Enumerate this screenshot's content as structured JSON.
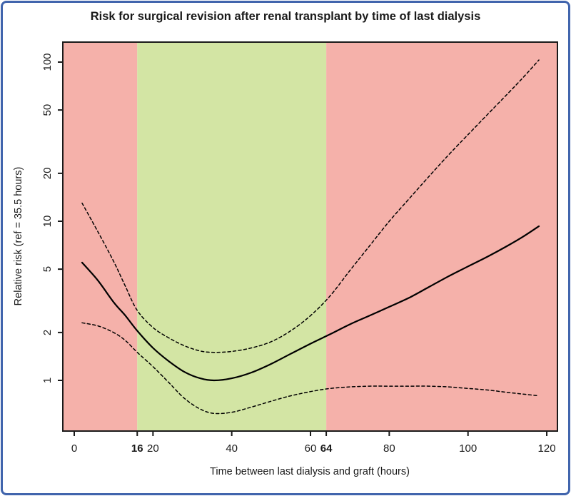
{
  "title": "Risk for surgical revision after renal transplant by time of last dialysis",
  "chart_data": {
    "type": "line",
    "title": "Risk for surgical revision after renal transplant by time of last dialysis",
    "xlabel": "Time between last dialysis and graft (hours)",
    "ylabel": "Relative risk (ref = 35.5 hours)",
    "x_scale": "linear",
    "y_scale": "log",
    "xlim": [
      0,
      120
    ],
    "ylim": [
      0.47,
      133
    ],
    "grid": false,
    "legend": "none",
    "reference_hours": 35.5,
    "x_ticks": [
      {
        "value": 0,
        "label": "0",
        "bold": false
      },
      {
        "value": 16,
        "label": "16",
        "bold": true
      },
      {
        "value": 20,
        "label": "20",
        "bold": false
      },
      {
        "value": 40,
        "label": "40",
        "bold": false
      },
      {
        "value": 60,
        "label": "60",
        "bold": false
      },
      {
        "value": 64,
        "label": "64",
        "bold": true
      },
      {
        "value": 80,
        "label": "80",
        "bold": false
      },
      {
        "value": 100,
        "label": "100",
        "bold": false
      },
      {
        "value": 120,
        "label": "120",
        "bold": false
      }
    ],
    "y_ticks": [
      {
        "value": 1,
        "label": "1"
      },
      {
        "value": 2,
        "label": "2"
      },
      {
        "value": 5,
        "label": "5"
      },
      {
        "value": 10,
        "label": "10"
      },
      {
        "value": 20,
        "label": "20"
      },
      {
        "value": 50,
        "label": "50"
      },
      {
        "value": 100,
        "label": "100"
      }
    ],
    "regions": [
      {
        "name": "high-risk-early",
        "start": null,
        "end": 16,
        "color": "#f5b1aa"
      },
      {
        "name": "low-risk-window",
        "start": 16,
        "end": 64,
        "color": "#d3e5a4"
      },
      {
        "name": "high-risk-late",
        "start": 64,
        "end": null,
        "color": "#f5b1aa"
      }
    ],
    "x": [
      2,
      6,
      10,
      13,
      16,
      20,
      24,
      28,
      32,
      35.5,
      40,
      45,
      50,
      55,
      60,
      65,
      70,
      75,
      80,
      85,
      90,
      95,
      100,
      105,
      110,
      114,
      118
    ],
    "series": [
      {
        "name": "relative-risk",
        "style": "solid",
        "values": [
          5.5,
          4.25,
          3.1,
          2.55,
          2.05,
          1.6,
          1.32,
          1.13,
          1.03,
          1.0,
          1.03,
          1.12,
          1.27,
          1.47,
          1.7,
          1.95,
          2.25,
          2.55,
          2.9,
          3.3,
          3.85,
          4.5,
          5.2,
          6.0,
          7.0,
          8.0,
          9.3
        ]
      },
      {
        "name": "upper-confidence-band",
        "style": "dashed",
        "values": [
          13.0,
          8.6,
          5.6,
          3.9,
          2.75,
          2.15,
          1.85,
          1.65,
          1.53,
          1.5,
          1.52,
          1.6,
          1.75,
          2.05,
          2.55,
          3.4,
          4.9,
          7.0,
          10.0,
          13.8,
          19.0,
          26.0,
          35.0,
          47.0,
          63.0,
          80.0,
          103.0
        ]
      },
      {
        "name": "lower-confidence-band",
        "style": "dashed",
        "values": [
          2.3,
          2.2,
          2.0,
          1.78,
          1.5,
          1.22,
          0.97,
          0.77,
          0.66,
          0.62,
          0.63,
          0.68,
          0.74,
          0.8,
          0.85,
          0.89,
          0.91,
          0.92,
          0.92,
          0.92,
          0.92,
          0.91,
          0.89,
          0.87,
          0.84,
          0.82,
          0.8
        ]
      }
    ],
    "colors": {
      "region_red": "#f5b1aa",
      "region_green": "#d3e5a4",
      "line": "#000000",
      "frame_border": "#4165ad",
      "text": "#1a1a1a"
    }
  }
}
